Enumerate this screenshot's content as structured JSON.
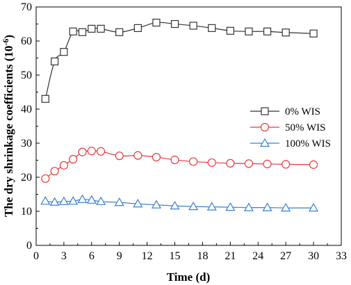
{
  "chart_data": {
    "type": "line",
    "xlabel": "Time (d)",
    "ylabel_main": "The dry shrinkage coefficients (10",
    "ylabel_sup": "-6",
    "ylabel_end": ")",
    "xlim": [
      0,
      33
    ],
    "ylim": [
      0,
      70
    ],
    "xticks": [
      0,
      3,
      6,
      9,
      12,
      15,
      18,
      21,
      24,
      27,
      30,
      33
    ],
    "yticks": [
      0,
      10,
      20,
      30,
      40,
      50,
      60,
      70
    ],
    "x": [
      1,
      2,
      3,
      4,
      5,
      6,
      7,
      9,
      11,
      13,
      15,
      17,
      19,
      21,
      23,
      25,
      27,
      30
    ],
    "legend_position": "center-right",
    "grid": false,
    "series": [
      {
        "name": "0% WIS",
        "color": "#333333",
        "marker": "square",
        "values": [
          43.0,
          54.0,
          56.8,
          62.8,
          62.6,
          63.6,
          63.6,
          62.6,
          63.8,
          65.4,
          65.0,
          64.5,
          63.8,
          63.0,
          62.8,
          62.8,
          62.5,
          62.2
        ]
      },
      {
        "name": "50% WIS",
        "color": "#e8373e",
        "marker": "circle",
        "values": [
          19.6,
          21.8,
          23.5,
          25.3,
          27.4,
          27.7,
          27.6,
          26.3,
          26.4,
          25.9,
          25.1,
          24.6,
          24.3,
          24.1,
          24.0,
          23.9,
          23.8,
          23.7
        ]
      },
      {
        "name": "100% WIS",
        "color": "#3a7fd0",
        "marker": "triangle",
        "values": [
          13.0,
          12.7,
          12.9,
          13.0,
          13.5,
          13.3,
          12.9,
          12.6,
          12.2,
          11.9,
          11.6,
          11.4,
          11.3,
          11.2,
          11.1,
          11.1,
          11.0,
          11.0
        ]
      }
    ]
  }
}
